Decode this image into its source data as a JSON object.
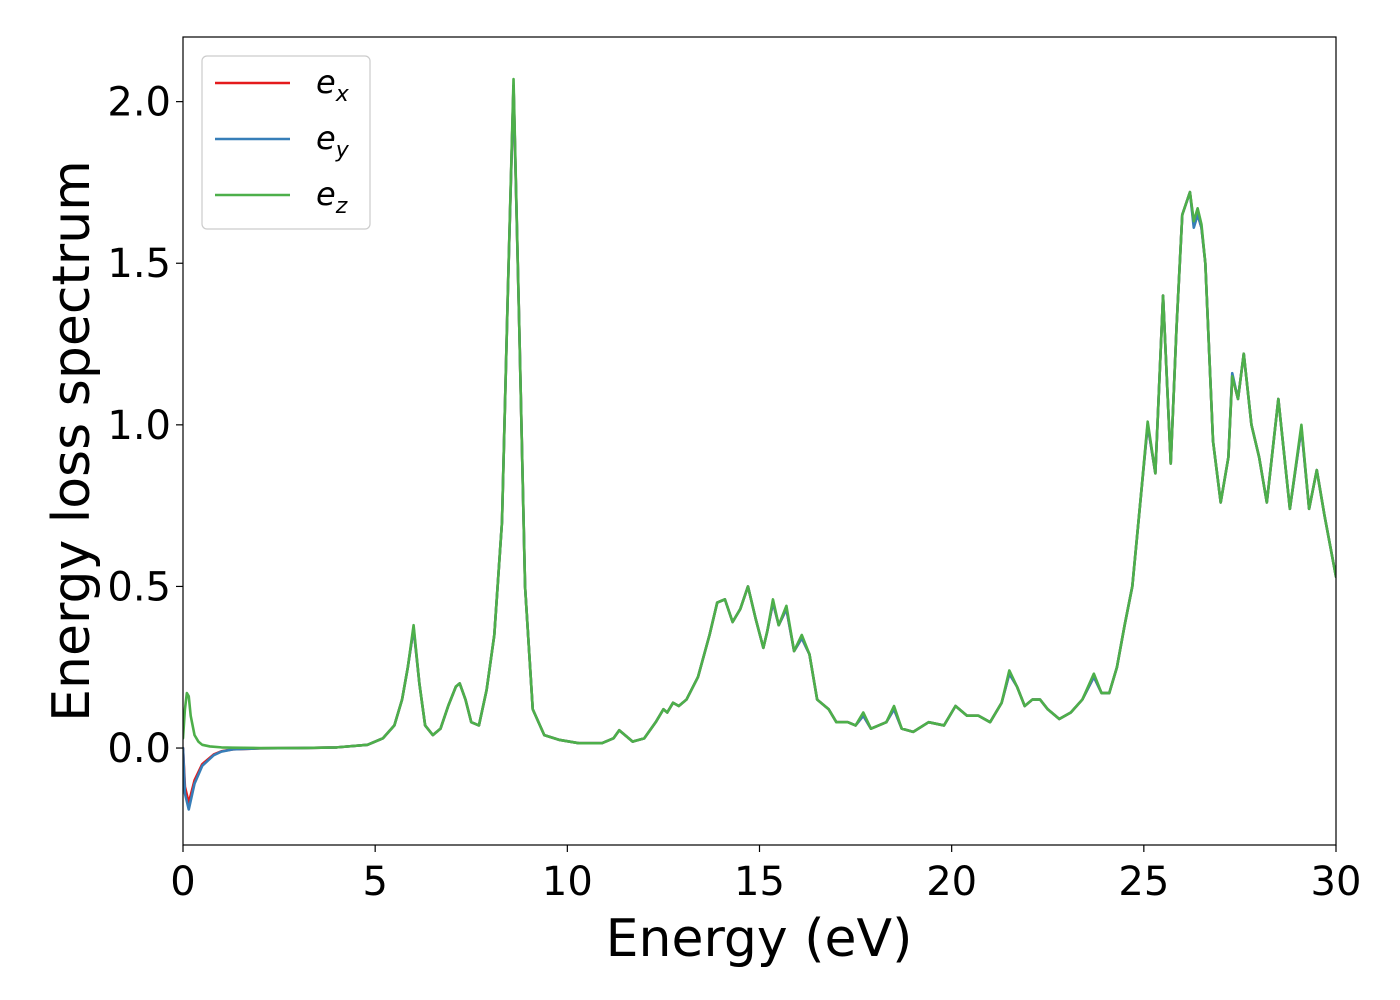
{
  "chart_data": {
    "type": "line",
    "title": "",
    "xlabel": "Energy (eV)",
    "ylabel": "Energy loss spectrum",
    "xlim": [
      0,
      30
    ],
    "ylim": [
      -0.3,
      2.2
    ],
    "xticks": [
      0,
      5,
      10,
      15,
      20,
      25,
      30
    ],
    "xtick_labels": [
      "0",
      "5",
      "10",
      "15",
      "20",
      "25",
      "30"
    ],
    "yticks": [
      0.0,
      0.5,
      1.0,
      1.5,
      2.0
    ],
    "ytick_labels": [
      "0.0",
      "0.5",
      "1.0",
      "1.5",
      "2.0"
    ],
    "grid": false,
    "legend_position": "top-left",
    "series": [
      {
        "name": "e_x",
        "label_main": "e",
        "label_sub": "x",
        "color": "#e41a1c",
        "x": [
          0,
          0.05,
          0.15,
          0.3,
          0.5,
          0.8,
          1.0,
          1.3,
          2,
          3,
          4,
          4.8,
          5.2,
          5.5,
          5.7,
          5.85,
          6.0,
          6.15,
          6.3,
          6.5,
          6.7,
          6.9,
          7.1,
          7.2,
          7.35,
          7.5,
          7.7,
          7.9,
          8.1,
          8.3,
          8.45,
          8.6,
          8.75,
          8.9,
          9.1,
          9.4,
          9.8,
          10.3,
          10.9,
          11.2,
          11.35,
          11.5,
          11.7,
          12.0,
          12.3,
          12.5,
          12.6,
          12.75,
          12.9,
          13.1,
          13.4,
          13.7,
          13.9,
          14.1,
          14.3,
          14.5,
          14.7,
          14.9,
          15.1,
          15.2,
          15.35,
          15.5,
          15.7,
          15.9,
          16.1,
          16.3,
          16.5,
          16.8,
          17.0,
          17.3,
          17.5,
          17.7,
          17.9,
          18.1,
          18.3,
          18.5,
          18.7,
          19.0,
          19.4,
          19.8,
          20.1,
          20.4,
          20.7,
          21.0,
          21.3,
          21.5,
          21.7,
          21.9,
          22.1,
          22.3,
          22.5,
          22.8,
          23.1,
          23.4,
          23.7,
          23.9,
          24.1,
          24.3,
          24.5,
          24.7,
          24.9,
          25.1,
          25.3,
          25.5,
          25.7,
          25.85,
          26.0,
          26.2,
          26.3,
          26.4,
          26.5,
          26.6,
          26.8,
          27.0,
          27.2,
          27.3,
          27.45,
          27.6,
          27.8,
          28.0,
          28.2,
          28.5,
          28.8,
          29.1,
          29.3,
          29.5,
          29.7,
          30.0
        ],
        "y": [
          0,
          -0.12,
          -0.17,
          -0.1,
          -0.05,
          -0.02,
          -0.01,
          -0.004,
          -0.001,
          0,
          0.002,
          0.01,
          0.03,
          0.07,
          0.15,
          0.25,
          0.37,
          0.2,
          0.07,
          0.04,
          0.06,
          0.13,
          0.19,
          0.2,
          0.15,
          0.08,
          0.07,
          0.18,
          0.35,
          0.7,
          1.4,
          2.05,
          1.3,
          0.5,
          0.12,
          0.04,
          0.025,
          0.015,
          0.015,
          0.03,
          0.055,
          0.04,
          0.02,
          0.03,
          0.08,
          0.12,
          0.11,
          0.14,
          0.13,
          0.15,
          0.22,
          0.35,
          0.45,
          0.46,
          0.39,
          0.43,
          0.5,
          0.4,
          0.31,
          0.36,
          0.45,
          0.38,
          0.43,
          0.3,
          0.34,
          0.29,
          0.15,
          0.12,
          0.08,
          0.08,
          0.07,
          0.1,
          0.06,
          0.07,
          0.08,
          0.12,
          0.06,
          0.05,
          0.08,
          0.07,
          0.13,
          0.1,
          0.1,
          0.08,
          0.14,
          0.23,
          0.19,
          0.13,
          0.15,
          0.15,
          0.12,
          0.09,
          0.11,
          0.15,
          0.22,
          0.17,
          0.17,
          0.25,
          0.38,
          0.5,
          0.75,
          1.0,
          0.85,
          1.4,
          0.88,
          1.3,
          1.65,
          1.72,
          1.62,
          1.65,
          1.61,
          1.5,
          0.95,
          0.76,
          0.9,
          1.15,
          1.08,
          1.22,
          1.0,
          0.9,
          0.76,
          1.08,
          0.74,
          0.99,
          0.74,
          0.86,
          0.72,
          0.53
        ]
      },
      {
        "name": "e_y",
        "label_main": "e",
        "label_sub": "y",
        "color": "#377eb8",
        "x": [
          0,
          0.05,
          0.15,
          0.3,
          0.5,
          0.8,
          1.0,
          1.3,
          2,
          3,
          4,
          4.8,
          5.2,
          5.5,
          5.7,
          5.85,
          6.0,
          6.15,
          6.3,
          6.5,
          6.7,
          6.9,
          7.1,
          7.2,
          7.35,
          7.5,
          7.7,
          7.9,
          8.1,
          8.3,
          8.45,
          8.6,
          8.75,
          8.9,
          9.1,
          9.4,
          9.8,
          10.3,
          10.9,
          11.2,
          11.35,
          11.5,
          11.7,
          12.0,
          12.3,
          12.5,
          12.6,
          12.75,
          12.9,
          13.1,
          13.4,
          13.7,
          13.9,
          14.1,
          14.3,
          14.5,
          14.7,
          14.9,
          15.1,
          15.2,
          15.35,
          15.5,
          15.7,
          15.9,
          16.1,
          16.3,
          16.5,
          16.8,
          17.0,
          17.3,
          17.5,
          17.7,
          17.9,
          18.1,
          18.3,
          18.5,
          18.7,
          19.0,
          19.4,
          19.8,
          20.1,
          20.4,
          20.7,
          21.0,
          21.3,
          21.5,
          21.7,
          21.9,
          22.1,
          22.3,
          22.5,
          22.8,
          23.1,
          23.4,
          23.7,
          23.9,
          24.1,
          24.3,
          24.5,
          24.7,
          24.9,
          25.1,
          25.3,
          25.5,
          25.7,
          25.85,
          26.0,
          26.2,
          26.3,
          26.4,
          26.5,
          26.6,
          26.8,
          27.0,
          27.2,
          27.3,
          27.45,
          27.6,
          27.8,
          28.0,
          28.2,
          28.5,
          28.8,
          29.1,
          29.3,
          29.5,
          29.7,
          30.0
        ],
        "y": [
          0,
          -0.14,
          -0.19,
          -0.11,
          -0.055,
          -0.022,
          -0.011,
          -0.004,
          -0.001,
          0,
          0.002,
          0.01,
          0.03,
          0.07,
          0.15,
          0.25,
          0.37,
          0.2,
          0.07,
          0.04,
          0.06,
          0.13,
          0.19,
          0.2,
          0.15,
          0.08,
          0.07,
          0.18,
          0.35,
          0.7,
          1.4,
          2.05,
          1.3,
          0.5,
          0.12,
          0.04,
          0.025,
          0.015,
          0.015,
          0.03,
          0.055,
          0.04,
          0.02,
          0.03,
          0.08,
          0.12,
          0.11,
          0.14,
          0.13,
          0.15,
          0.22,
          0.35,
          0.45,
          0.46,
          0.39,
          0.43,
          0.5,
          0.4,
          0.31,
          0.36,
          0.45,
          0.38,
          0.43,
          0.3,
          0.34,
          0.29,
          0.15,
          0.12,
          0.08,
          0.08,
          0.07,
          0.1,
          0.06,
          0.07,
          0.08,
          0.12,
          0.06,
          0.05,
          0.08,
          0.07,
          0.13,
          0.1,
          0.1,
          0.08,
          0.14,
          0.23,
          0.19,
          0.13,
          0.15,
          0.15,
          0.12,
          0.09,
          0.11,
          0.15,
          0.22,
          0.17,
          0.17,
          0.25,
          0.38,
          0.5,
          0.75,
          1.0,
          0.85,
          1.4,
          0.88,
          1.3,
          1.65,
          1.72,
          1.61,
          1.65,
          1.61,
          1.5,
          0.95,
          0.76,
          0.9,
          1.16,
          1.08,
          1.22,
          1.0,
          0.9,
          0.76,
          1.08,
          0.74,
          0.99,
          0.74,
          0.86,
          0.72,
          0.53
        ]
      },
      {
        "name": "e_z",
        "label_main": "e",
        "label_sub": "z",
        "color": "#4daf4a",
        "x": [
          0,
          0.05,
          0.1,
          0.15,
          0.2,
          0.3,
          0.4,
          0.5,
          0.7,
          1.0,
          1.3,
          2,
          3,
          4,
          4.8,
          5.2,
          5.5,
          5.7,
          5.85,
          6.0,
          6.15,
          6.3,
          6.5,
          6.7,
          6.9,
          7.1,
          7.2,
          7.35,
          7.5,
          7.7,
          7.9,
          8.1,
          8.3,
          8.45,
          8.6,
          8.75,
          8.9,
          9.1,
          9.4,
          9.8,
          10.3,
          10.9,
          11.2,
          11.35,
          11.5,
          11.7,
          12.0,
          12.3,
          12.5,
          12.6,
          12.75,
          12.9,
          13.1,
          13.4,
          13.7,
          13.9,
          14.1,
          14.3,
          14.5,
          14.7,
          14.9,
          15.1,
          15.2,
          15.35,
          15.5,
          15.7,
          15.9,
          16.1,
          16.3,
          16.5,
          16.8,
          17.0,
          17.3,
          17.5,
          17.7,
          17.9,
          18.1,
          18.3,
          18.5,
          18.7,
          19.0,
          19.4,
          19.8,
          20.1,
          20.4,
          20.7,
          21.0,
          21.3,
          21.5,
          21.7,
          21.9,
          22.1,
          22.3,
          22.5,
          22.8,
          23.1,
          23.4,
          23.7,
          23.9,
          24.1,
          24.3,
          24.5,
          24.7,
          24.9,
          25.1,
          25.3,
          25.5,
          25.7,
          25.85,
          26.0,
          26.2,
          26.3,
          26.4,
          26.5,
          26.6,
          26.8,
          27.0,
          27.2,
          27.3,
          27.45,
          27.6,
          27.8,
          28.0,
          28.2,
          28.5,
          28.8,
          29.1,
          29.3,
          29.5,
          29.7,
          30.0
        ],
        "y": [
          0.03,
          0.12,
          0.17,
          0.16,
          0.1,
          0.04,
          0.02,
          0.01,
          0.005,
          0.002,
          0.001,
          0,
          0,
          0.002,
          0.01,
          0.03,
          0.07,
          0.15,
          0.25,
          0.38,
          0.2,
          0.07,
          0.04,
          0.06,
          0.13,
          0.19,
          0.2,
          0.15,
          0.08,
          0.07,
          0.18,
          0.35,
          0.7,
          1.4,
          2.07,
          1.3,
          0.5,
          0.12,
          0.04,
          0.025,
          0.015,
          0.015,
          0.03,
          0.055,
          0.04,
          0.02,
          0.03,
          0.08,
          0.12,
          0.11,
          0.14,
          0.13,
          0.15,
          0.22,
          0.35,
          0.45,
          0.46,
          0.39,
          0.43,
          0.5,
          0.4,
          0.31,
          0.36,
          0.46,
          0.38,
          0.44,
          0.3,
          0.35,
          0.29,
          0.15,
          0.12,
          0.08,
          0.08,
          0.07,
          0.11,
          0.06,
          0.07,
          0.08,
          0.13,
          0.06,
          0.05,
          0.08,
          0.07,
          0.13,
          0.1,
          0.1,
          0.08,
          0.14,
          0.24,
          0.19,
          0.13,
          0.15,
          0.15,
          0.12,
          0.09,
          0.11,
          0.15,
          0.23,
          0.17,
          0.17,
          0.25,
          0.38,
          0.5,
          0.75,
          1.01,
          0.85,
          1.4,
          0.88,
          1.3,
          1.65,
          1.72,
          1.63,
          1.67,
          1.62,
          1.5,
          0.95,
          0.76,
          0.9,
          1.15,
          1.08,
          1.22,
          1.0,
          0.9,
          0.76,
          1.08,
          0.74,
          1.0,
          0.74,
          0.86,
          0.72,
          0.53
        ]
      }
    ]
  }
}
